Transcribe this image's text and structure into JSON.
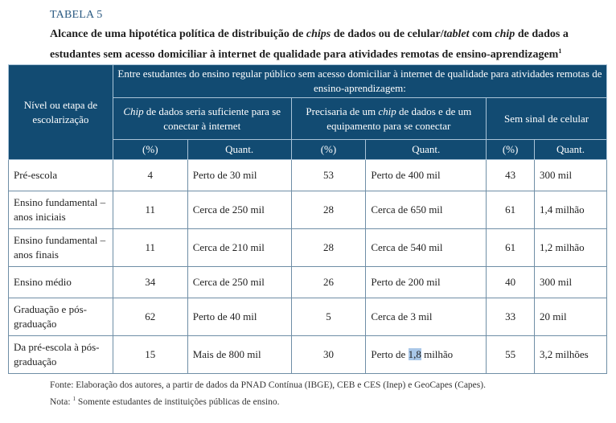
{
  "table_label": "TABELA 5",
  "title": {
    "p1": "Alcance de uma hipotética política de distribuição de ",
    "i1": "chips",
    "p2": " de dados ou de celular/",
    "i2": "tablet",
    "p3": " com ",
    "i3": "chip",
    "p4": " de dados a estudantes sem acesso domiciliar à internet de qualidade para atividades remotas de ensino-aprendizagem",
    "note_mark": "1"
  },
  "header": {
    "level": "Nível ou etapa de escolarização",
    "group": "Entre estudantes do ensino regular público sem acesso domiciliar à internet de qualidade para atividades remotas de ensino-aprendizagem:",
    "col1_i": "Chip",
    "col1_rest": " de dados seria suficiente para se conectar à internet",
    "col2_a": "Precisaria de um ",
    "col2_i": "chip",
    "col2_b": " de dados e de um equipamento para se conectar",
    "col3": "Sem sinal de celular",
    "pct": "(%)",
    "quant": "Quant."
  },
  "rows": [
    {
      "level": "Pré-escola",
      "p1": "4",
      "q1": "Perto de 30 mil",
      "p2": "53",
      "q2": "Perto de 400 mil",
      "p3": "43",
      "q3": "300 mil"
    },
    {
      "level": "Ensino fundamental – anos iniciais",
      "p1": "11",
      "q1": "Cerca de 250 mil",
      "p2": "28",
      "q2": "Cerca de 650 mil",
      "p3": "61",
      "q3": "1,4 milhão"
    },
    {
      "level": "Ensino fundamental – anos finais",
      "p1": "11",
      "q1": "Cerca de 210 mil",
      "p2": "28",
      "q2": "Cerca de 540 mil",
      "p3": "61",
      "q3": "1,2 milhão"
    },
    {
      "level": "Ensino médio",
      "p1": "34",
      "q1": "Cerca de 250 mil",
      "p2": "26",
      "q2": "Perto de 200 mil",
      "p3": "40",
      "q3": "300 mil"
    },
    {
      "level": "Graduação e pós-graduação",
      "p1": "62",
      "q1": "Perto de 40 mil",
      "p2": "5",
      "q2": "Cerca de 3 mil",
      "p3": "33",
      "q3": "20 mil"
    },
    {
      "level": "Da pré-escola à pós-graduação",
      "p1": "15",
      "q1": "Mais de 800 mil",
      "p2": "30",
      "q2_a": "Perto de ",
      "q2_hl": "1,8",
      "q2_b": " milhão",
      "p3": "55",
      "q3": "3,2 milhões"
    }
  ],
  "footer": {
    "source": "Fonte: Elaboração dos autores, a partir de dados da PNAD Contínua (IBGE), CEB e CES (Inep) e GeoCapes (Capes).",
    "note_prefix": "Nota: ",
    "note_mark": "1",
    "note_text": " Somente estudantes de instituições públicas de ensino."
  },
  "colors": {
    "header_bg": "#124b72",
    "label": "#2b5a82",
    "highlight": "#a9c7e8"
  }
}
